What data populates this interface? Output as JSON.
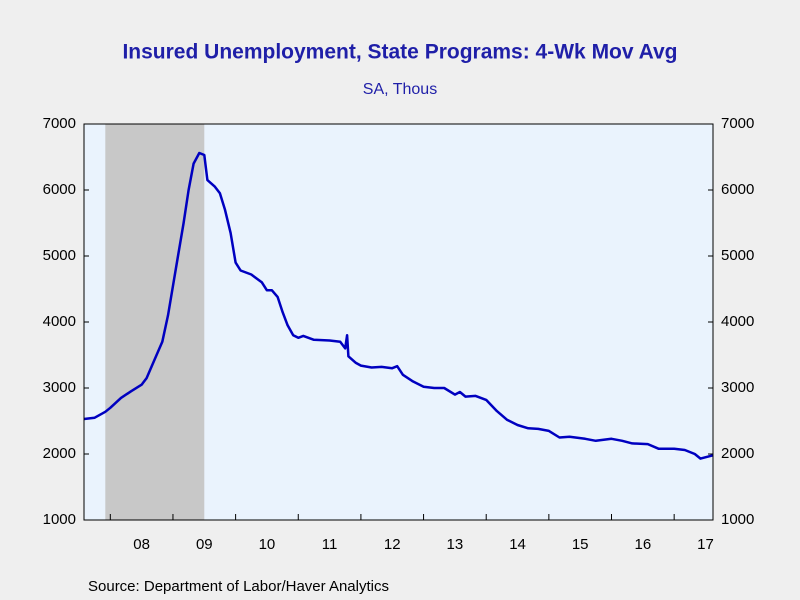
{
  "chart_data": {
    "type": "line",
    "title": "Insured Unemployment, State Programs: 4-Wk Mov Avg",
    "subtitle": "SA, Thous",
    "source": "Source:  Department of Labor/Haver Analytics",
    "x": [
      2007.58,
      2007.75,
      2007.92,
      2008.0,
      2008.17,
      2008.33,
      2008.5,
      2008.58,
      2008.67,
      2008.83,
      2008.92,
      2009.0,
      2009.08,
      2009.17,
      2009.25,
      2009.33,
      2009.42,
      2009.5,
      2009.55,
      2009.67,
      2009.75,
      2009.83,
      2009.92,
      2010.0,
      2010.08,
      2010.25,
      2010.42,
      2010.5,
      2010.58,
      2010.67,
      2010.75,
      2010.83,
      2010.92,
      2011.0,
      2011.08,
      2011.25,
      2011.5,
      2011.67,
      2011.75,
      2011.78,
      2011.8,
      2011.92,
      2012.0,
      2012.17,
      2012.33,
      2012.5,
      2012.58,
      2012.67,
      2012.83,
      2013.0,
      2013.17,
      2013.33,
      2013.5,
      2013.58,
      2013.67,
      2013.83,
      2014.0,
      2014.17,
      2014.33,
      2014.5,
      2014.67,
      2014.83,
      2015.0,
      2015.17,
      2015.33,
      2015.58,
      2015.75,
      2016.0,
      2016.17,
      2016.33,
      2016.58,
      2016.75,
      2017.0,
      2017.17,
      2017.33,
      2017.42,
      2017.62
    ],
    "series": [
      {
        "name": "Insured Unemployment, State Programs",
        "color": "#0000c0",
        "values": [
          2530,
          2550,
          2640,
          2700,
          2850,
          2950,
          3050,
          3150,
          3350,
          3700,
          4100,
          4550,
          5000,
          5500,
          6000,
          6400,
          6560,
          6530,
          6150,
          6050,
          5950,
          5700,
          5350,
          4900,
          4780,
          4720,
          4600,
          4480,
          4480,
          4380,
          4150,
          3950,
          3800,
          3760,
          3790,
          3730,
          3720,
          3700,
          3600,
          3800,
          3480,
          3380,
          3340,
          3310,
          3320,
          3300,
          3330,
          3200,
          3100,
          3020,
          3000,
          3000,
          2900,
          2940,
          2870,
          2880,
          2820,
          2650,
          2520,
          2440,
          2390,
          2380,
          2350,
          2250,
          2260,
          2230,
          2200,
          2230,
          2200,
          2160,
          2150,
          2080,
          2080,
          2060,
          2000,
          1930,
          1980
        ]
      }
    ],
    "shading": [
      [
        2007.92,
        2009.5
      ]
    ],
    "xlim": [
      2007.58,
      2017.62
    ],
    "xticks": [
      {
        "value": 2008,
        "label": "08"
      },
      {
        "value": 2009,
        "label": "09"
      },
      {
        "value": 2010,
        "label": "10"
      },
      {
        "value": 2011,
        "label": "11"
      },
      {
        "value": 2012,
        "label": "12"
      },
      {
        "value": 2013,
        "label": "13"
      },
      {
        "value": 2014,
        "label": "14"
      },
      {
        "value": 2015,
        "label": "15"
      },
      {
        "value": 2016,
        "label": "16"
      },
      {
        "value": 2017,
        "label": "17"
      }
    ],
    "ylim": [
      1000,
      7000
    ],
    "yticks": [
      1000,
      2000,
      3000,
      4000,
      5000,
      6000,
      7000
    ],
    "y2lim": [
      1000,
      7000
    ],
    "y2ticks": [
      1000,
      2000,
      3000,
      4000,
      5000,
      6000,
      7000
    ]
  }
}
